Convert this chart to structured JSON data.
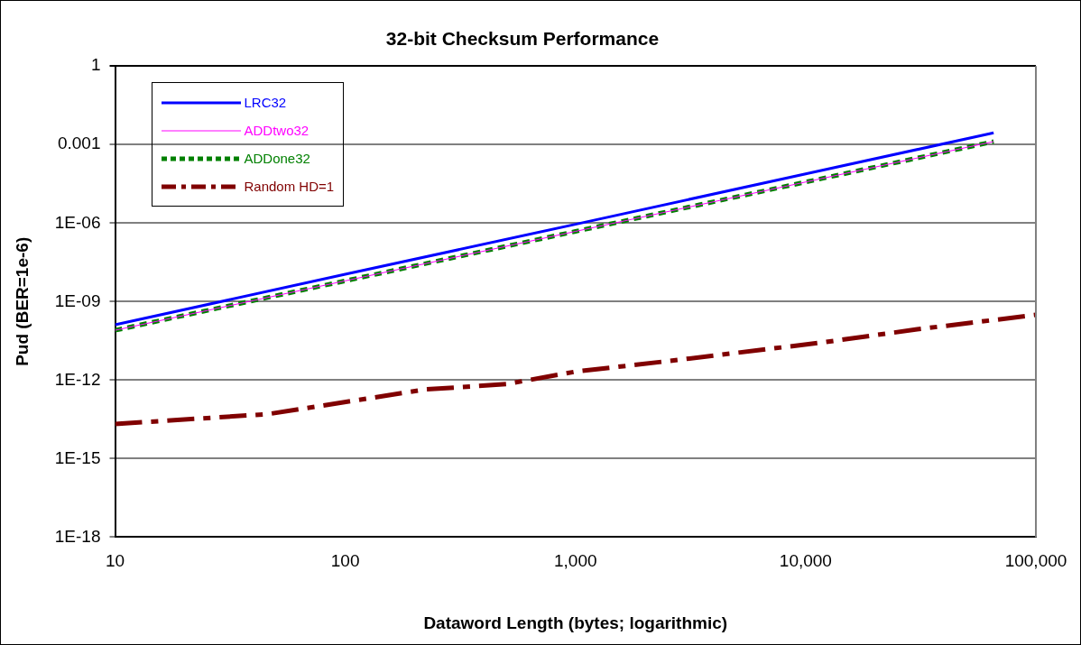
{
  "chart_data": {
    "type": "line",
    "title": "32-bit Checksum Performance",
    "xlabel": "Dataword Length (bytes; logarithmic)",
    "ylabel": "Pud (BER=1e-6)",
    "log": "xy",
    "grid": "y",
    "legend": "top left",
    "marker": "none",
    "xlim": [
      10,
      100000
    ],
    "xticks": [
      10,
      100,
      {
        "value": 1000,
        "label": "1,000"
      },
      {
        "value": 10000,
        "label": "10,000"
      },
      {
        "value": 100000,
        "label": "100,000"
      }
    ],
    "ylim": [
      1e-18,
      1
    ],
    "yticks": [
      1,
      0.001,
      {
        "value": 1e-06,
        "label": "1E-06"
      },
      {
        "value": 1e-09,
        "label": "1E-09"
      },
      {
        "value": 1e-12,
        "label": "1E-12"
      },
      {
        "value": 1e-15,
        "label": "1E-15"
      },
      {
        "value": 1e-18,
        "label": "1E-18"
      }
    ],
    "series": [
      {
        "name": "LRC32",
        "color": "#0000ff",
        "line_style": "solid",
        "x": [
          10,
          100,
          1000,
          10000,
          65536
        ],
        "values": [
          1.3e-10,
          1.1e-08,
          9e-07,
          7.6e-05,
          0.0028
        ]
      },
      {
        "name": "ADDtwo32",
        "color": "#ff00ff",
        "line_style": "solid",
        "x": [
          10,
          100,
          1000,
          10000,
          65536
        ],
        "values": [
          8e-11,
          6.2e-09,
          4.8e-07,
          3.7e-05,
          0.0013
        ]
      },
      {
        "name": "ADDone32",
        "color": "#008000",
        "line_style": "dotted",
        "x": [
          10,
          100,
          1000,
          10000,
          65536
        ],
        "values": [
          8e-11,
          6.2e-09,
          4.8e-07,
          3.7e-05,
          0.0013
        ]
      },
      {
        "name": "Random HD=1",
        "color": "#800000",
        "line_style": "dashed",
        "x": [
          10,
          46,
          224,
          500,
          1000,
          2376,
          11700,
          30500,
          100000
        ],
        "values": [
          2.1e-14,
          5e-14,
          4.4e-13,
          7e-13,
          2.1e-12,
          5e-12,
          2.7e-11,
          8.7e-11,
          3.1e-10
        ]
      }
    ]
  }
}
